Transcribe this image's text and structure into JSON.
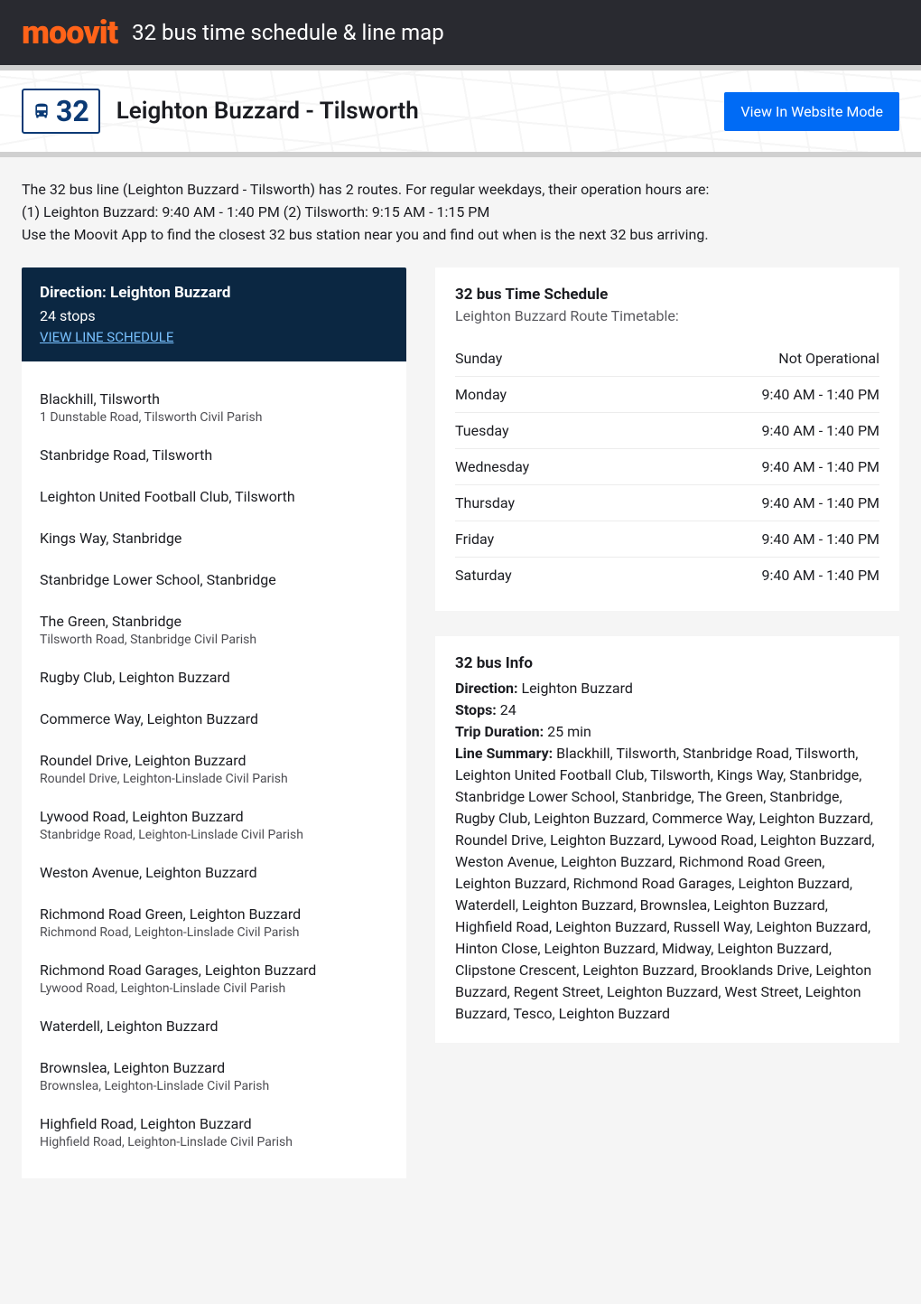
{
  "topbar": {
    "logo_text": "moovit",
    "title": "32 bus time schedule & line map"
  },
  "banner": {
    "route_badge": "32",
    "route_title": "Leighton Buzzard - Tilsworth",
    "view_website_btn": "View In Website Mode"
  },
  "intro": {
    "line1": "The 32 bus line (Leighton Buzzard - Tilsworth) has 2 routes. For regular weekdays, their operation hours are:",
    "line2": "(1) Leighton Buzzard: 9:40 AM - 1:40 PM (2) Tilsworth: 9:15 AM - 1:15 PM",
    "line3": "Use the Moovit App to find the closest 32 bus station near you and find out when is the next 32 bus arriving."
  },
  "direction": {
    "title": "Direction: Leighton Buzzard",
    "stops_count": "24 stops",
    "link": "VIEW LINE SCHEDULE"
  },
  "stops": [
    {
      "name": "Blackhill, Tilsworth",
      "detail": "1 Dunstable Road, Tilsworth Civil Parish"
    },
    {
      "name": "Stanbridge Road, Tilsworth",
      "detail": ""
    },
    {
      "name": "Leighton United Football Club, Tilsworth",
      "detail": ""
    },
    {
      "name": "Kings Way, Stanbridge",
      "detail": ""
    },
    {
      "name": "Stanbridge Lower School, Stanbridge",
      "detail": ""
    },
    {
      "name": "The Green, Stanbridge",
      "detail": "Tilsworth Road, Stanbridge Civil Parish"
    },
    {
      "name": "Rugby Club, Leighton Buzzard",
      "detail": ""
    },
    {
      "name": "Commerce Way, Leighton Buzzard",
      "detail": ""
    },
    {
      "name": "Roundel Drive, Leighton Buzzard",
      "detail": "Roundel Drive, Leighton-Linslade Civil Parish"
    },
    {
      "name": "Lywood Road, Leighton Buzzard",
      "detail": "Stanbridge Road, Leighton-Linslade Civil Parish"
    },
    {
      "name": "Weston Avenue, Leighton Buzzard",
      "detail": ""
    },
    {
      "name": "Richmond Road Green, Leighton Buzzard",
      "detail": "Richmond Road, Leighton-Linslade Civil Parish"
    },
    {
      "name": "Richmond Road Garages, Leighton Buzzard",
      "detail": "Lywood Road, Leighton-Linslade Civil Parish"
    },
    {
      "name": "Waterdell, Leighton Buzzard",
      "detail": ""
    },
    {
      "name": "Brownslea, Leighton Buzzard",
      "detail": "Brownslea, Leighton-Linslade Civil Parish"
    },
    {
      "name": "Highfield Road, Leighton Buzzard",
      "detail": "Highfield Road, Leighton-Linslade Civil Parish"
    }
  ],
  "schedule": {
    "title": "32 bus Time Schedule",
    "subtitle": "Leighton Buzzard Route Timetable:",
    "rows": [
      {
        "day": "Sunday",
        "hours": "Not Operational"
      },
      {
        "day": "Monday",
        "hours": "9:40 AM - 1:40 PM"
      },
      {
        "day": "Tuesday",
        "hours": "9:40 AM - 1:40 PM"
      },
      {
        "day": "Wednesday",
        "hours": "9:40 AM - 1:40 PM"
      },
      {
        "day": "Thursday",
        "hours": "9:40 AM - 1:40 PM"
      },
      {
        "day": "Friday",
        "hours": "9:40 AM - 1:40 PM"
      },
      {
        "day": "Saturday",
        "hours": "9:40 AM - 1:40 PM"
      }
    ]
  },
  "info": {
    "title": "32 bus Info",
    "direction_label": "Direction:",
    "direction_value": " Leighton Buzzard",
    "stops_label": "Stops:",
    "stops_value": " 24",
    "duration_label": "Trip Duration:",
    "duration_value": " 25 min",
    "summary_label": "Line Summary:",
    "summary_value": " Blackhill, Tilsworth, Stanbridge Road, Tilsworth, Leighton United Football Club, Tilsworth, Kings Way, Stanbridge, Stanbridge Lower School, Stanbridge, The Green, Stanbridge, Rugby Club, Leighton Buzzard, Commerce Way, Leighton Buzzard, Roundel Drive, Leighton Buzzard, Lywood Road, Leighton Buzzard, Weston Avenue, Leighton Buzzard, Richmond Road Green, Leighton Buzzard, Richmond Road Garages, Leighton Buzzard, Waterdell, Leighton Buzzard, Brownslea, Leighton Buzzard, Highfield Road, Leighton Buzzard, Russell Way, Leighton Buzzard, Hinton Close, Leighton Buzzard, Midway, Leighton Buzzard, Clipstone Crescent, Leighton Buzzard, Brooklands Drive, Leighton Buzzard, Regent Street, Leighton Buzzard, West Street, Leighton Buzzard, Tesco, Leighton Buzzard"
  },
  "colors": {
    "brand_orange": "#ff6319",
    "topbar_bg": "#292a30",
    "direction_box_bg": "#0b2742",
    "link_blue": "#79c1ff",
    "button_blue": "#006bf5",
    "badge_blue": "#0b3a75",
    "separator_gray": "#d0d0d0",
    "card_bg": "#ffffff",
    "page_bg": "#f5f5f5",
    "text_primary": "#1b1c21",
    "text_secondary": "#5a5a5f",
    "detail_text": "#4d4d52",
    "row_border": "#ececec"
  }
}
